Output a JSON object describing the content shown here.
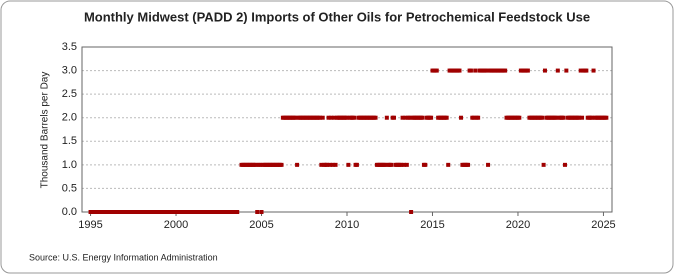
{
  "chart_data": {
    "type": "scatter",
    "title": "Monthly Midwest (PADD 2) Imports of Other Oils for Petrochemical Feedstock Use",
    "y_label": "Thousand Barrels per Day",
    "source": "Source: U.S. Energy Information Administration",
    "color": "#a00000",
    "grid": true,
    "xlim": [
      1994.5,
      2025.5
    ],
    "xticks": [
      1995,
      2000,
      2005,
      2010,
      2015,
      2020,
      2025
    ],
    "ylim": [
      0,
      3.5
    ],
    "yticks": [
      {
        "value": 0,
        "label": "0.0"
      },
      {
        "value": 0.5,
        "label": "0.5"
      },
      {
        "value": 1,
        "label": "1.0"
      },
      {
        "value": 1.5,
        "label": "1.5"
      },
      {
        "value": 2,
        "label": "2.0"
      },
      {
        "value": 2.5,
        "label": "2.5"
      },
      {
        "value": 3,
        "label": "3.0"
      },
      {
        "value": 3.5,
        "label": "3.5"
      }
    ],
    "x": [
      1995,
      1995.08,
      1995.17,
      1995.25,
      1995.33,
      1995.42,
      1995.5,
      1995.58,
      1995.67,
      1995.75,
      1995.83,
      1995.92,
      1996,
      1996.08,
      1996.17,
      1996.25,
      1996.33,
      1996.42,
      1996.5,
      1996.58,
      1996.67,
      1996.75,
      1996.83,
      1996.92,
      1997,
      1997.08,
      1997.17,
      1997.25,
      1997.33,
      1997.42,
      1997.5,
      1997.58,
      1997.67,
      1997.75,
      1997.83,
      1997.92,
      1998,
      1998.08,
      1998.17,
      1998.25,
      1998.33,
      1998.42,
      1998.5,
      1998.58,
      1998.67,
      1998.75,
      1998.83,
      1998.92,
      1999,
      1999.08,
      1999.17,
      1999.25,
      1999.33,
      1999.42,
      1999.5,
      1999.58,
      1999.67,
      1999.75,
      1999.83,
      1999.92,
      2000,
      2000.08,
      2000.17,
      2000.25,
      2000.33,
      2000.42,
      2000.5,
      2000.58,
      2000.67,
      2000.75,
      2000.83,
      2000.92,
      2001,
      2001.08,
      2001.17,
      2001.25,
      2001.33,
      2001.42,
      2001.5,
      2001.58,
      2001.67,
      2001.75,
      2001.83,
      2001.92,
      2002,
      2002.08,
      2002.17,
      2002.25,
      2002.33,
      2002.42,
      2002.5,
      2002.58,
      2002.67,
      2002.75,
      2002.83,
      2002.92,
      2003,
      2003.08,
      2003.17,
      2003.25,
      2003.33,
      2003.42,
      2003.5,
      2003.58,
      2003.67,
      2003.75,
      2003.83,
      2003.92,
      2004,
      2004.08,
      2004.17,
      2004.25,
      2004.33,
      2004.42,
      2004.5,
      2004.58,
      2004.67,
      2004.75,
      2004.83,
      2004.92,
      2005,
      2005.08,
      2005.17,
      2005.25,
      2005.33,
      2005.42,
      2005.5,
      2005.58,
      2005.67,
      2005.75,
      2005.83,
      2005.92,
      2006,
      2006.08,
      2006.17,
      2006.25,
      2006.33,
      2006.42,
      2006.5,
      2006.58,
      2006.67,
      2006.75,
      2006.83,
      2006.92,
      2007,
      2007.08,
      2007.17,
      2007.25,
      2007.33,
      2007.42,
      2007.5,
      2007.58,
      2007.67,
      2007.75,
      2007.83,
      2007.92,
      2008,
      2008.08,
      2008.17,
      2008.25,
      2008.33,
      2008.42,
      2008.5,
      2008.58,
      2008.67,
      2008.75,
      2008.83,
      2008.92,
      2009,
      2009.08,
      2009.17,
      2009.25,
      2009.33,
      2009.42,
      2009.5,
      2009.58,
      2009.67,
      2009.75,
      2009.83,
      2009.92,
      2010,
      2010.08,
      2010.17,
      2010.25,
      2010.33,
      2010.42,
      2010.5,
      2010.58,
      2010.67,
      2010.75,
      2010.83,
      2010.92,
      2011,
      2011.08,
      2011.17,
      2011.25,
      2011.33,
      2011.42,
      2011.5,
      2011.58,
      2011.67,
      2011.75,
      2011.83,
      2011.92,
      2012,
      2012.08,
      2012.17,
      2012.25,
      2012.33,
      2012.42,
      2012.5,
      2012.58,
      2012.67,
      2012.75,
      2012.83,
      2012.92,
      2013,
      2013.08,
      2013.17,
      2013.25,
      2013.33,
      2013.42,
      2013.5,
      2013.58,
      2013.67,
      2013.75,
      2013.83,
      2013.92,
      2014,
      2014.08,
      2014.17,
      2014.25,
      2014.33,
      2014.42,
      2014.5,
      2014.58,
      2014.67,
      2014.75,
      2014.83,
      2014.92,
      2015,
      2015.08,
      2015.17,
      2015.25,
      2015.33,
      2015.42,
      2015.5,
      2015.58,
      2015.67,
      2015.75,
      2015.83,
      2015.92,
      2016,
      2016.08,
      2016.17,
      2016.25,
      2016.33,
      2016.42,
      2016.5,
      2016.58,
      2016.67,
      2016.75,
      2016.83,
      2016.92,
      2017,
      2017.08,
      2017.17,
      2017.25,
      2017.33,
      2017.42,
      2017.5,
      2017.58,
      2017.67,
      2017.75,
      2017.83,
      2017.92,
      2018,
      2018.08,
      2018.17,
      2018.25,
      2018.33,
      2018.42,
      2018.5,
      2018.58,
      2018.67,
      2018.75,
      2018.83,
      2018.92,
      2019,
      2019.08,
      2019.17,
      2019.25,
      2019.33,
      2019.42,
      2019.5,
      2019.58,
      2019.67,
      2019.75,
      2019.83,
      2019.92,
      2020,
      2020.08,
      2020.17,
      2020.25,
      2020.33,
      2020.42,
      2020.5,
      2020.58,
      2020.67,
      2020.75,
      2020.83,
      2020.92,
      2021,
      2021.08,
      2021.17,
      2021.25,
      2021.33,
      2021.42,
      2021.5,
      2021.58,
      2021.67,
      2021.75,
      2021.83,
      2021.92,
      2022,
      2022.08,
      2022.17,
      2022.25,
      2022.33,
      2022.42,
      2022.5,
      2022.58,
      2022.67,
      2022.75,
      2022.83,
      2022.92,
      2023,
      2023.08,
      2023.17,
      2023.25,
      2023.33,
      2023.42,
      2023.5,
      2023.58,
      2023.67,
      2023.75,
      2023.83,
      2023.92,
      2024,
      2024.08,
      2024.17,
      2024.25,
      2024.33,
      2024.42,
      2024.5,
      2024.58,
      2024.67,
      2024.75,
      2024.83,
      2024.92,
      2025,
      2025.08,
      2025.17
    ],
    "values": [
      0,
      0,
      0,
      0,
      0,
      0,
      0,
      0,
      0,
      0,
      0,
      0,
      0,
      0,
      0,
      0,
      0,
      0,
      0,
      0,
      0,
      0,
      0,
      0,
      0,
      0,
      0,
      0,
      0,
      0,
      0,
      0,
      0,
      0,
      0,
      0,
      0,
      0,
      0,
      0,
      0,
      0,
      0,
      0,
      0,
      0,
      0,
      0,
      0,
      0,
      0,
      0,
      0,
      0,
      0,
      0,
      0,
      0,
      0,
      0,
      0,
      0,
      0,
      0,
      0,
      0,
      0,
      0,
      0,
      0,
      0,
      0,
      0,
      0,
      0,
      0,
      0,
      0,
      0,
      0,
      0,
      0,
      0,
      0,
      0,
      0,
      0,
      0,
      0,
      0,
      0,
      0,
      0,
      0,
      0,
      0,
      0,
      0,
      0,
      0,
      0,
      0,
      0,
      0,
      null,
      null,
      1,
      1,
      1,
      1,
      1,
      1,
      1,
      1,
      1,
      1,
      1,
      0,
      1,
      1,
      0,
      1,
      1,
      1,
      1,
      1,
      1,
      1,
      1,
      1,
      1,
      1,
      1,
      1,
      1,
      2,
      2,
      2,
      2,
      2,
      2,
      2,
      2,
      2,
      2,
      1,
      2,
      2,
      2,
      2,
      2,
      2,
      2,
      2,
      2,
      2,
      2,
      2,
      2,
      2,
      2,
      2,
      1,
      2,
      1,
      1,
      1,
      2,
      1,
      2,
      1,
      2,
      1,
      2,
      2,
      2,
      2,
      2,
      2,
      2,
      2,
      1,
      2,
      2,
      2,
      2,
      1,
      1,
      2,
      2,
      2,
      2,
      2,
      2,
      2,
      2,
      2,
      2,
      2,
      2,
      2,
      1,
      1,
      1,
      1,
      1,
      1,
      1,
      2,
      1,
      1,
      1,
      2,
      2,
      1,
      1,
      1,
      1,
      1,
      2,
      1,
      2,
      1,
      2,
      2,
      0,
      2,
      2,
      2,
      2,
      2,
      2,
      2,
      2,
      1,
      1,
      2,
      2,
      2,
      2,
      3,
      3,
      3,
      3,
      2,
      2,
      2,
      2,
      2,
      2,
      2,
      1,
      3,
      3,
      3,
      3,
      3,
      3,
      3,
      3,
      2,
      1,
      1,
      1,
      1,
      1,
      3,
      3,
      2,
      2,
      3,
      2,
      2,
      3,
      3,
      3,
      3,
      3,
      3,
      1,
      3,
      3,
      3,
      3,
      3,
      3,
      3,
      3,
      3,
      3,
      3,
      3,
      2,
      2,
      2,
      2,
      2,
      2,
      2,
      2,
      2,
      2,
      3,
      3,
      3,
      3,
      3,
      3,
      2,
      2,
      2,
      2,
      2,
      2,
      2,
      2,
      2,
      2,
      1,
      3,
      2,
      2,
      2,
      2,
      2,
      2,
      2,
      2,
      3,
      2,
      2,
      2,
      2,
      1,
      3,
      2,
      2,
      2,
      2,
      2,
      2,
      2,
      2,
      2,
      3,
      2,
      3,
      3,
      3,
      2,
      2,
      2,
      2,
      3,
      2,
      2,
      2,
      2,
      2,
      2,
      2,
      2,
      2
    ]
  }
}
